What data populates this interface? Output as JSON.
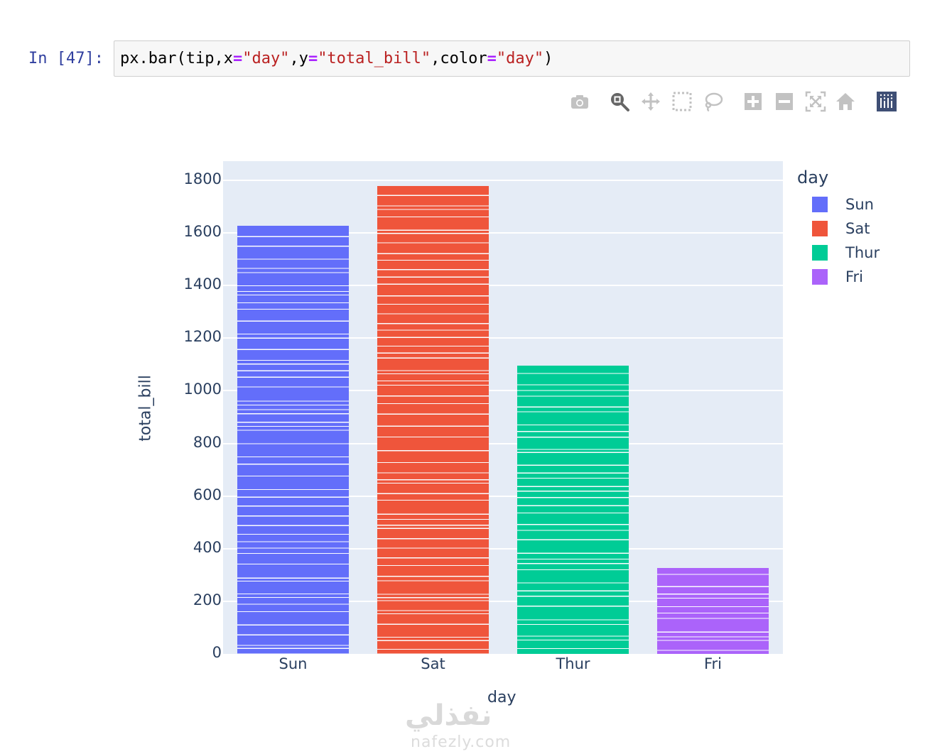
{
  "cell": {
    "prompt": "In [47]:",
    "code_parts": {
      "p1": "px.bar(tip,x",
      "eq1": "=",
      "s1": "\"day\"",
      "p2": ",y",
      "eq2": "=",
      "s2": "\"total_bill\"",
      "p3": ",color",
      "eq3": "=",
      "s3": "\"day\"",
      "p4": ")"
    }
  },
  "modebar": {
    "buttons": [
      {
        "name": "download-png",
        "icon": "camera-icon"
      },
      {
        "name": "zoom",
        "icon": "zoom-icon",
        "active": true
      },
      {
        "name": "pan",
        "icon": "pan-icon"
      },
      {
        "name": "box-select",
        "icon": "box-select-icon"
      },
      {
        "name": "lasso-select",
        "icon": "lasso-icon"
      },
      {
        "name": "zoom-in",
        "icon": "zoom-in-icon"
      },
      {
        "name": "zoom-out",
        "icon": "zoom-out-icon"
      },
      {
        "name": "autoscale",
        "icon": "autoscale-icon"
      },
      {
        "name": "reset-axes",
        "icon": "home-icon"
      },
      {
        "name": "plotly-logo",
        "icon": "plotly-logo-icon"
      }
    ]
  },
  "chart_data": {
    "type": "bar",
    "title": "",
    "xlabel": "day",
    "ylabel": "total_bill",
    "categories": [
      "Sun",
      "Sat",
      "Thur",
      "Fri"
    ],
    "values": [
      1627.16,
      1778.4,
      1096.33,
      325.88
    ],
    "colors": [
      "#636efa",
      "#EF553B",
      "#00cc96",
      "#ab63fa"
    ],
    "ylim": [
      0,
      1870
    ],
    "yticks": [
      0,
      200,
      400,
      600,
      800,
      1000,
      1200,
      1400,
      1600,
      1800
    ],
    "grid": true,
    "legend": {
      "title": "day",
      "position": "right",
      "entries": [
        "Sun",
        "Sat",
        "Thur",
        "Fri"
      ]
    },
    "note": "Stacked segments (one per row) separated by thin white lines"
  },
  "ytick_labels": [
    "0",
    "200",
    "400",
    "600",
    "800",
    "1000",
    "1200",
    "1400",
    "1600",
    "1800"
  ],
  "watermark": {
    "arabic": "نفذلي",
    "url": "nafezly.com"
  }
}
